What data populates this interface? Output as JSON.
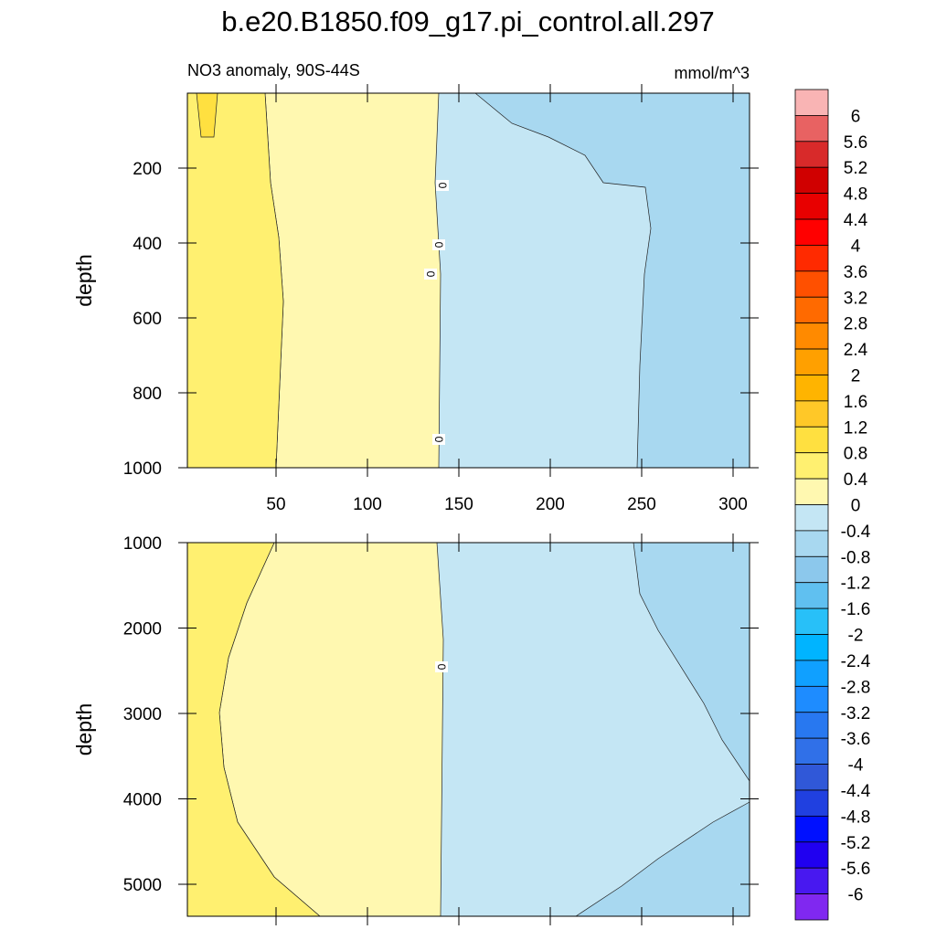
{
  "chart_data": {
    "type": "contour",
    "title": "b.e20.B1850.f09_g17.pi_control.all.297",
    "subtitle": "NO3 anomaly, 90S-44S",
    "units": "mmol/m^3",
    "colorbar": {
      "levels": [
        6,
        5.6,
        5.2,
        4.8,
        4.4,
        4,
        3.6,
        3.2,
        2.8,
        2.4,
        2,
        1.6,
        1.2,
        0.8,
        0.4,
        0,
        -0.4,
        -0.8,
        -1.2,
        -1.6,
        -2,
        -2.4,
        -2.8,
        -3.2,
        -3.6,
        -4,
        -4.4,
        -4.8,
        -5.2,
        -5.6,
        -6
      ],
      "colors": [
        "#f9b4b4",
        "#e86262",
        "#d82a2a",
        "#d00000",
        "#e80000",
        "#ff0000",
        "#ff2a00",
        "#ff5000",
        "#ff6a00",
        "#ff8a00",
        "#ffa000",
        "#ffb400",
        "#ffc828",
        "#ffe040",
        "#fff070",
        "#fff8b0",
        "#c4e6f4",
        "#a8d8f0",
        "#8cc8ec",
        "#60c0f0",
        "#28c0f8",
        "#00b4ff",
        "#10a0ff",
        "#1e8cff",
        "#2878f0",
        "#3070e8",
        "#3058d8",
        "#2040e0",
        "#0010ff",
        "#2000f0",
        "#4818f0",
        "#8028f0"
      ]
    },
    "panels": [
      {
        "ylabel": "depth",
        "xlim": [
          1.5,
          309
        ],
        "ylim": [
          0,
          1000
        ],
        "yticks": [
          200,
          400,
          600,
          800,
          1000
        ],
        "xticks": [
          50,
          100,
          150,
          200,
          250,
          300
        ],
        "contour_labels": [
          0,
          0,
          0,
          0
        ]
      },
      {
        "ylabel": "depth",
        "xlim": [
          1.5,
          309
        ],
        "ylim": [
          1000,
          5375
        ],
        "yticks": [
          1000,
          2000,
          3000,
          4000,
          5000
        ],
        "contour_labels": [
          0
        ]
      }
    ]
  }
}
